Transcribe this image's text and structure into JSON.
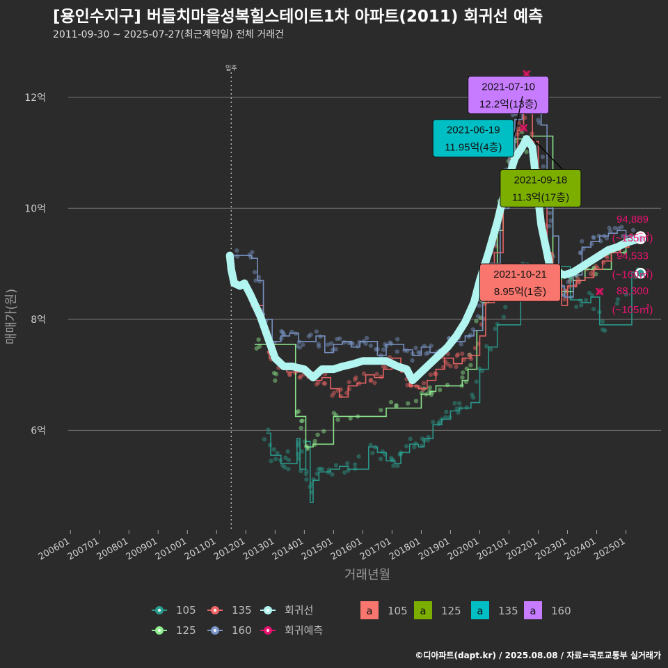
{
  "title": "[용인수지구] 버들치마을성복힐스테이트1차 아파트(2011) 회귀선 예측",
  "subtitle": "2011-09-30 ~ 2025-07-27(최근계약일) 전체 거래건",
  "credit": "©디아파트(dapt.kr) / 2025.08.08 / 자료=국토교통부 실거래가",
  "colors": {
    "background": "#2b2b2b",
    "grid": "#6e6e6e",
    "s105": "#2a9d8f",
    "s125": "#90ee90",
    "s135": "#f06565",
    "s160": "#7b96c8",
    "regression": "#b2f5f0",
    "prediction": "#e8136f",
    "ann105": "#f8766d",
    "ann125": "#7cae00",
    "ann135": "#00bfc4",
    "ann160": "#c77cff"
  },
  "chart_data": {
    "type": "line",
    "xlabel": "거래년월",
    "ylabel": "매매가(원)",
    "xlim": [
      2005.4,
      2026.2
    ],
    "ylim": [
      4.2,
      12.9
    ],
    "y_ticks": [
      {
        "value": 6,
        "label": "6억"
      },
      {
        "value": 8,
        "label": "8억"
      },
      {
        "value": 10,
        "label": "10억"
      },
      {
        "value": 12,
        "label": "12억"
      }
    ],
    "x_ticks": [
      {
        "value": 2006.0,
        "label": "200601"
      },
      {
        "value": 2007.0,
        "label": "200701"
      },
      {
        "value": 2008.0,
        "label": "200801"
      },
      {
        "value": 2009.0,
        "label": "200901"
      },
      {
        "value": 2010.0,
        "label": "201001"
      },
      {
        "value": 2011.0,
        "label": "201101"
      },
      {
        "value": 2012.0,
        "label": "201201"
      },
      {
        "value": 2013.0,
        "label": "201301"
      },
      {
        "value": 2014.0,
        "label": "201401"
      },
      {
        "value": 2015.0,
        "label": "201501"
      },
      {
        "value": 2016.0,
        "label": "201601"
      },
      {
        "value": 2017.0,
        "label": "201701"
      },
      {
        "value": 2018.0,
        "label": "201801"
      },
      {
        "value": 2019.0,
        "label": "201901"
      },
      {
        "value": 2020.0,
        "label": "202001"
      },
      {
        "value": 2021.0,
        "label": "202101"
      },
      {
        "value": 2022.0,
        "label": "202201"
      },
      {
        "value": 2023.0,
        "label": "202301"
      },
      {
        "value": 2024.0,
        "label": "202401"
      },
      {
        "value": 2025.0,
        "label": "202501"
      }
    ],
    "move_in": {
      "x": 2011.5,
      "label": "입주"
    },
    "series": [
      {
        "name": "105",
        "color": "#2a9d8f",
        "values": [
          [
            2012.7,
            5.95
          ],
          [
            2012.85,
            5.55
          ],
          [
            2013.1,
            5.55
          ],
          [
            2013.2,
            5.4
          ],
          [
            2013.4,
            5.4
          ],
          [
            2013.75,
            5.85
          ],
          [
            2013.85,
            5.3
          ],
          [
            2014.05,
            5.8
          ],
          [
            2014.2,
            4.7
          ],
          [
            2014.3,
            5.1
          ],
          [
            2014.5,
            5.25
          ],
          [
            2014.9,
            5.3
          ],
          [
            2015.2,
            5.35
          ],
          [
            2015.5,
            5.3
          ],
          [
            2016.2,
            5.7
          ],
          [
            2016.5,
            5.6
          ],
          [
            2016.8,
            5.45
          ],
          [
            2017.1,
            5.4
          ],
          [
            2017.3,
            5.6
          ],
          [
            2017.6,
            5.75
          ],
          [
            2017.9,
            5.7
          ],
          [
            2018.1,
            5.85
          ],
          [
            2018.4,
            6.1
          ],
          [
            2018.7,
            6.2
          ],
          [
            2019.0,
            6.35
          ],
          [
            2019.3,
            6.4
          ],
          [
            2019.7,
            6.5
          ],
          [
            2020.0,
            7.1
          ],
          [
            2020.3,
            7.5
          ],
          [
            2020.6,
            7.9
          ],
          [
            2021.4,
            8.95
          ],
          [
            2021.6,
            8.95
          ],
          [
            2023.1,
            8.35
          ],
          [
            2023.5,
            8.3
          ],
          [
            2023.8,
            8.4
          ],
          [
            2024.1,
            7.9
          ],
          [
            2024.4,
            7.9
          ],
          [
            2025.2,
            8.85
          ],
          [
            2025.45,
            8.83
          ]
        ]
      },
      {
        "name": "125",
        "color": "#90ee90",
        "values": [
          [
            2012.3,
            7.55
          ],
          [
            2012.5,
            7.55
          ],
          [
            2013.7,
            6.25
          ],
          [
            2013.9,
            6.25
          ],
          [
            2014.05,
            5.7
          ],
          [
            2014.3,
            5.75
          ],
          [
            2015.0,
            6.25
          ],
          [
            2015.3,
            6.25
          ],
          [
            2016.8,
            6.4
          ],
          [
            2017.3,
            6.4
          ],
          [
            2018.0,
            6.65
          ],
          [
            2018.3,
            6.7
          ],
          [
            2018.5,
            6.8
          ],
          [
            2019.4,
            6.9
          ],
          [
            2019.6,
            7.1
          ],
          [
            2019.9,
            7.8
          ],
          [
            2020.1,
            8.3
          ],
          [
            2020.3,
            8.7
          ],
          [
            2020.6,
            9.6
          ],
          [
            2020.8,
            10.6
          ],
          [
            2021.0,
            10.9
          ],
          [
            2021.2,
            11.25
          ],
          [
            2021.5,
            11.3
          ],
          [
            2022.5,
            8.9
          ],
          [
            2022.8,
            8.5
          ],
          [
            2023.2,
            8.7
          ],
          [
            2023.6,
            8.9
          ],
          [
            2024.0,
            8.9
          ],
          [
            2024.5,
            9.2
          ],
          [
            2025.0,
            9.3
          ]
        ]
      },
      {
        "name": "135",
        "color": "#f06565",
        "values": [
          [
            2012.2,
            8.3
          ],
          [
            2012.4,
            8.25
          ],
          [
            2012.6,
            7.8
          ],
          [
            2012.8,
            7.3
          ],
          [
            2013.1,
            7.2
          ],
          [
            2013.4,
            7.05
          ],
          [
            2013.7,
            7.05
          ],
          [
            2014.0,
            7.05
          ],
          [
            2014.3,
            6.9
          ],
          [
            2014.6,
            6.95
          ],
          [
            2014.9,
            6.75
          ],
          [
            2015.2,
            6.6
          ],
          [
            2015.5,
            6.8
          ],
          [
            2015.8,
            6.85
          ],
          [
            2016.1,
            7.0
          ],
          [
            2016.4,
            6.95
          ],
          [
            2016.7,
            7.1
          ],
          [
            2017.0,
            7.3
          ],
          [
            2017.3,
            7.05
          ],
          [
            2017.6,
            6.8
          ],
          [
            2017.9,
            6.75
          ],
          [
            2018.2,
            6.9
          ],
          [
            2018.5,
            7.1
          ],
          [
            2018.8,
            7.3
          ],
          [
            2019.1,
            7.2
          ],
          [
            2019.4,
            7.3
          ],
          [
            2019.7,
            7.35
          ],
          [
            2020.0,
            7.7
          ],
          [
            2020.2,
            8.3
          ],
          [
            2020.5,
            9.2
          ],
          [
            2020.8,
            10.2
          ],
          [
            2021.0,
            10.9
          ],
          [
            2021.3,
            11.4
          ],
          [
            2021.5,
            11.95
          ],
          [
            2021.8,
            11.2
          ],
          [
            2022.0,
            10.5
          ],
          [
            2022.3,
            9.2
          ],
          [
            2022.5,
            8.7
          ],
          [
            2022.8,
            8.25
          ],
          [
            2023.0,
            8.6
          ],
          [
            2023.3,
            8.7
          ],
          [
            2023.6,
            8.75
          ],
          [
            2023.9,
            8.9
          ],
          [
            2024.2,
            9.05
          ],
          [
            2024.5,
            9.2
          ],
          [
            2024.8,
            9.3
          ],
          [
            2025.1,
            9.4
          ],
          [
            2025.45,
            9.45
          ]
        ]
      },
      {
        "name": "160",
        "color": "#7b96c8",
        "values": [
          [
            2011.6,
            9.15
          ],
          [
            2012.0,
            9.15
          ],
          [
            2012.2,
            9.1
          ],
          [
            2012.4,
            8.7
          ],
          [
            2012.6,
            8.0
          ],
          [
            2012.9,
            7.6
          ],
          [
            2013.2,
            7.7
          ],
          [
            2013.5,
            7.75
          ],
          [
            2013.8,
            7.6
          ],
          [
            2014.1,
            7.6
          ],
          [
            2014.4,
            7.7
          ],
          [
            2014.7,
            7.4
          ],
          [
            2015.0,
            7.55
          ],
          [
            2015.3,
            7.6
          ],
          [
            2015.6,
            7.5
          ],
          [
            2015.9,
            7.6
          ],
          [
            2016.2,
            7.6
          ],
          [
            2016.5,
            7.35
          ],
          [
            2016.8,
            7.55
          ],
          [
            2017.1,
            7.55
          ],
          [
            2017.4,
            7.45
          ],
          [
            2017.7,
            7.35
          ],
          [
            2018.0,
            7.5
          ],
          [
            2018.3,
            7.4
          ],
          [
            2018.6,
            7.45
          ],
          [
            2018.9,
            7.6
          ],
          [
            2019.2,
            7.6
          ],
          [
            2019.5,
            7.7
          ],
          [
            2019.8,
            7.8
          ],
          [
            2020.1,
            8.4
          ],
          [
            2020.4,
            9.0
          ],
          [
            2020.7,
            10.0
          ],
          [
            2021.0,
            11.0
          ],
          [
            2021.2,
            11.6
          ],
          [
            2021.45,
            12.0
          ],
          [
            2021.6,
            12.0
          ],
          [
            2021.8,
            11.95
          ],
          [
            2022.1,
            11.5
          ],
          [
            2022.3,
            10.0
          ],
          [
            2022.5,
            9.5
          ],
          [
            2022.7,
            8.6
          ],
          [
            2022.9,
            8.4
          ],
          [
            2023.2,
            8.8
          ],
          [
            2023.5,
            9.3
          ],
          [
            2023.8,
            9.4
          ],
          [
            2024.1,
            9.5
          ],
          [
            2024.4,
            9.55
          ],
          [
            2024.7,
            9.6
          ],
          [
            2025.0,
            9.5
          ],
          [
            2025.45,
            9.5
          ]
        ]
      },
      {
        "name": "회귀선",
        "color": "#b2f5f0",
        "values": [
          [
            2011.45,
            9.15
          ],
          [
            2011.5,
            8.9
          ],
          [
            2011.6,
            8.65
          ],
          [
            2011.8,
            8.6
          ],
          [
            2011.95,
            8.65
          ],
          [
            2012.15,
            8.45
          ],
          [
            2012.5,
            8.05
          ],
          [
            2012.8,
            7.6
          ],
          [
            2013.0,
            7.3
          ],
          [
            2013.3,
            7.15
          ],
          [
            2013.6,
            7.15
          ],
          [
            2014.0,
            7.1
          ],
          [
            2014.3,
            6.95
          ],
          [
            2014.6,
            7.1
          ],
          [
            2015.0,
            7.1
          ],
          [
            2015.3,
            7.15
          ],
          [
            2015.7,
            7.2
          ],
          [
            2016.0,
            7.25
          ],
          [
            2016.4,
            7.25
          ],
          [
            2016.8,
            7.25
          ],
          [
            2017.2,
            7.15
          ],
          [
            2017.5,
            7.1
          ],
          [
            2017.7,
            6.9
          ],
          [
            2018.0,
            7.05
          ],
          [
            2018.3,
            7.2
          ],
          [
            2018.6,
            7.35
          ],
          [
            2018.9,
            7.5
          ],
          [
            2019.2,
            7.7
          ],
          [
            2019.5,
            7.95
          ],
          [
            2019.8,
            8.3
          ],
          [
            2020.0,
            8.7
          ],
          [
            2020.3,
            9.2
          ],
          [
            2020.6,
            9.75
          ],
          [
            2020.9,
            10.4
          ],
          [
            2021.2,
            10.9
          ],
          [
            2021.45,
            11.1
          ],
          [
            2021.6,
            11.25
          ],
          [
            2021.8,
            11.1
          ],
          [
            2021.95,
            10.4
          ],
          [
            2022.1,
            9.7
          ],
          [
            2022.3,
            9.2
          ],
          [
            2022.45,
            8.8
          ],
          [
            2022.6,
            8.85
          ],
          [
            2022.9,
            8.8
          ],
          [
            2023.2,
            8.85
          ],
          [
            2023.5,
            8.95
          ],
          [
            2023.8,
            9.05
          ],
          [
            2024.1,
            9.15
          ],
          [
            2024.4,
            9.25
          ],
          [
            2024.7,
            9.3
          ],
          [
            2025.0,
            9.38
          ],
          [
            2025.45,
            9.45
          ]
        ]
      }
    ],
    "prediction_points": [
      {
        "x": 2025.5,
        "y": 9.49,
        "size": "135"
      },
      {
        "x": 2025.5,
        "y": 9.45,
        "size": "160"
      },
      {
        "x": 2025.5,
        "y": 8.83,
        "size": "105"
      }
    ],
    "prediction_labels": [
      {
        "line1": "94,889",
        "line2": "(~135㎡)",
        "y": 9.49
      },
      {
        "line1": "94,533",
        "line2": "(~160㎡)",
        "y": 8.83
      },
      {
        "line1": "88,300",
        "line2": "(~105㎡)",
        "y": 8.2
      }
    ],
    "crossed_points": [
      {
        "x": 2021.6,
        "y": 12.42
      },
      {
        "x": 2021.5,
        "y": 11.45
      },
      {
        "x": 2024.1,
        "y": 8.5
      }
    ],
    "annotations": [
      {
        "date": "2021-07-10",
        "value": "12.2억(13층)",
        "size": "160",
        "color": "#c77cff",
        "anchor_x": 2021.52,
        "anchor_y": 12.2,
        "label_x": 2019.6,
        "label_y": 12.38
      },
      {
        "date": "2021-06-19",
        "value": "11.95억(4층)",
        "size": "135",
        "color": "#00bfc4",
        "anchor_x": 2021.46,
        "anchor_y": 12.02,
        "label_x": 2018.4,
        "label_y": 11.6
      },
      {
        "date": "2021-09-18",
        "value": "11.3억(17층)",
        "size": "125",
        "color": "#7cae00",
        "anchor_x": 2021.72,
        "anchor_y": 11.3,
        "label_x": 2020.7,
        "label_y": 10.7
      },
      {
        "date": "2021-10-21",
        "value": "8.95억(1층)",
        "size": "105",
        "color": "#f8766d",
        "anchor_x": 2021.8,
        "anchor_y": 8.95,
        "label_x": 2020.0,
        "label_y": 9.0
      }
    ]
  },
  "legend": {
    "lines": [
      {
        "label": "105",
        "color": "#2a9d8f"
      },
      {
        "label": "135",
        "color": "#f06565"
      },
      {
        "label": "회귀선",
        "color": "#b2f5f0"
      },
      {
        "label": "125",
        "color": "#90ee90"
      },
      {
        "label": "160",
        "color": "#7b96c8"
      },
      {
        "label": "회귀예측",
        "color": "#e8136f"
      }
    ],
    "boxes": [
      {
        "label": "105",
        "color": "#f8766d"
      },
      {
        "label": "125",
        "color": "#7cae00"
      },
      {
        "label": "135",
        "color": "#00bfc4"
      },
      {
        "label": "160",
        "color": "#c77cff"
      }
    ],
    "box_glyph": "a"
  }
}
